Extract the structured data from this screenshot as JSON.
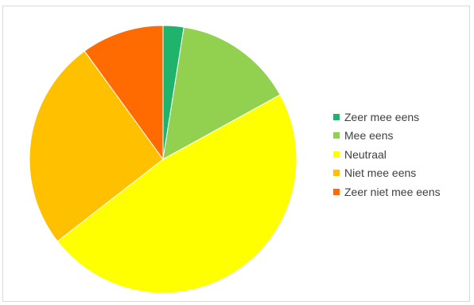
{
  "chart_data": {
    "type": "pie",
    "title": "",
    "categories": [
      "Zeer mee eens",
      "Mee eens",
      "Neutraal",
      "Niet mee eens",
      "Zeer niet mee eens"
    ],
    "values": [
      2.5,
      14.5,
      47.5,
      25.5,
      10.0
    ],
    "colors": [
      "#1fb36b",
      "#92d050",
      "#ffff00",
      "#ffc000",
      "#ff6b00"
    ],
    "start_angle_deg": 0,
    "direction": "clockwise",
    "legend": "right"
  }
}
